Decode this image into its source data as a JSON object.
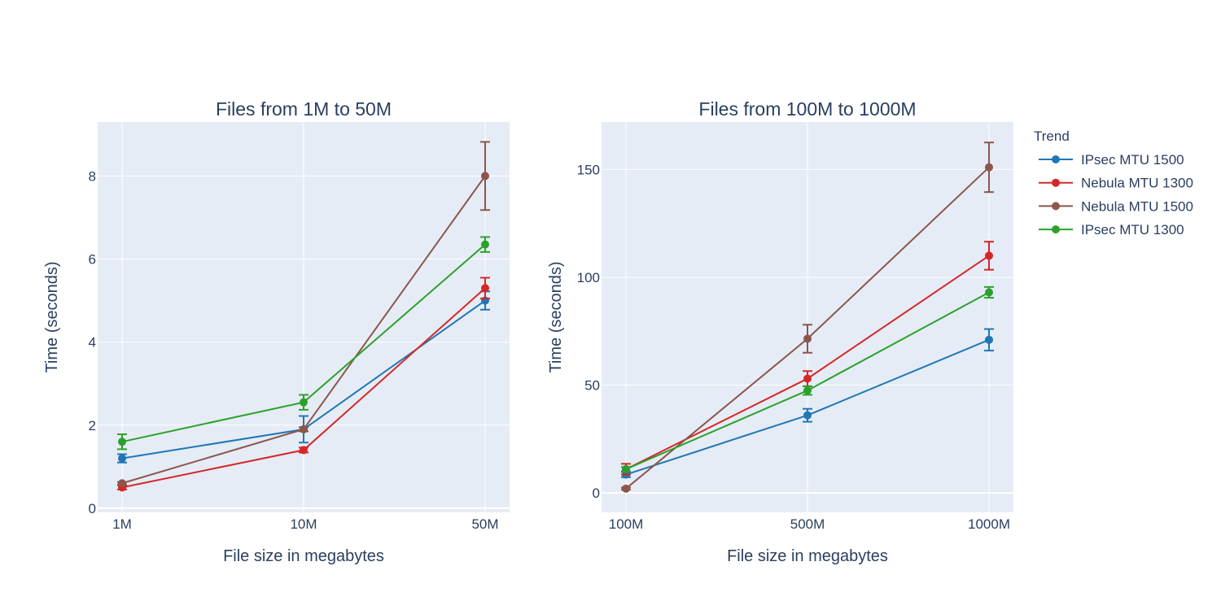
{
  "legend": {
    "title": "Trend",
    "placement": "right"
  },
  "chart_data": [
    {
      "type": "line",
      "title": "Files from 1M to 50M",
      "xlabel": "File size in megabytes",
      "ylabel": "Time (seconds)",
      "categories": [
        "1M",
        "10M",
        "50M"
      ],
      "ylim": [
        -0.1,
        9.3
      ],
      "yticks": [
        0,
        2,
        4,
        6,
        8
      ],
      "grid": true,
      "series": [
        {
          "name": "IPsec MTU 1500",
          "color": "#1f77b4",
          "values": [
            1.2,
            1.9,
            5.0
          ],
          "err": [
            0.1,
            0.32,
            0.22
          ]
        },
        {
          "name": "Nebula MTU 1300",
          "color": "#d62728",
          "values": [
            0.5,
            1.4,
            5.3
          ],
          "err": [
            0.05,
            0.06,
            0.25
          ]
        },
        {
          "name": "Nebula MTU 1500",
          "color": "#8c564b",
          "values": [
            0.6,
            1.9,
            8.0
          ],
          "err": [
            0.03,
            0.05,
            0.82
          ]
        },
        {
          "name": "IPsec MTU 1300",
          "color": "#2ca02c",
          "values": [
            1.6,
            2.55,
            6.35
          ],
          "err": [
            0.18,
            0.18,
            0.18
          ]
        }
      ]
    },
    {
      "type": "line",
      "title": "Files from 100M to 1000M",
      "xlabel": "File size in megabytes",
      "ylabel": "Time (seconds)",
      "categories": [
        "100M",
        "500M",
        "1000M"
      ],
      "ylim": [
        -9,
        172
      ],
      "yticks": [
        0,
        50,
        100,
        150
      ],
      "grid": true,
      "series": [
        {
          "name": "IPsec MTU 1500",
          "color": "#1f77b4",
          "values": [
            8.5,
            36,
            71
          ],
          "err": [
            1.2,
            3,
            5
          ]
        },
        {
          "name": "Nebula MTU 1300",
          "color": "#d62728",
          "values": [
            11,
            53,
            110
          ],
          "err": [
            2.5,
            3.5,
            6.5
          ]
        },
        {
          "name": "Nebula MTU 1500",
          "color": "#8c564b",
          "values": [
            2,
            71.5,
            151
          ],
          "err": [
            0.5,
            6.5,
            11.5
          ]
        },
        {
          "name": "IPsec MTU 1300",
          "color": "#2ca02c",
          "values": [
            11,
            47.5,
            93
          ],
          "err": [
            1,
            2,
            2.5
          ]
        }
      ]
    }
  ]
}
